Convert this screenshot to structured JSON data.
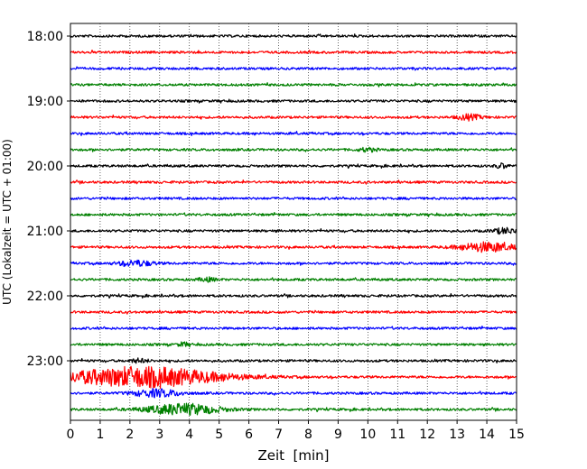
{
  "chart_data": {
    "type": "line",
    "subtype": "helicorder",
    "title": "",
    "xlabel": "Zeit  [min]",
    "ylabel": "UTC (Lokalzeit = UTC + 01:00)",
    "xlim": [
      0,
      15
    ],
    "x_ticks": [
      "0",
      "1",
      "2",
      "3",
      "4",
      "5",
      "6",
      "7",
      "8",
      "9",
      "10",
      "11",
      "12",
      "13",
      "14",
      "15"
    ],
    "y_ticks": [
      "18:00",
      "19:00",
      "20:00",
      "21:00",
      "22:00",
      "23:00"
    ],
    "grid": "vertical dotted lines at each minute",
    "trace_colors": [
      "#000000",
      "#ff0000",
      "#0000ff",
      "#008000"
    ],
    "traces": [
      {
        "start": "18:00",
        "color": "#000000",
        "events": []
      },
      {
        "start": "18:15",
        "color": "#ff0000",
        "events": []
      },
      {
        "start": "18:30",
        "color": "#0000ff",
        "events": []
      },
      {
        "start": "18:45",
        "color": "#008000",
        "events": []
      },
      {
        "start": "19:00",
        "color": "#000000",
        "events": []
      },
      {
        "start": "19:15",
        "color": "#ff0000",
        "events": [
          {
            "t": 13.4,
            "amp": 3,
            "width": 0.4
          }
        ]
      },
      {
        "start": "19:30",
        "color": "#0000ff",
        "events": []
      },
      {
        "start": "19:45",
        "color": "#008000",
        "events": [
          {
            "t": 10.0,
            "amp": 2,
            "width": 0.3
          }
        ]
      },
      {
        "start": "20:00",
        "color": "#000000",
        "events": [
          {
            "t": 14.5,
            "amp": 2.5,
            "width": 0.2
          }
        ]
      },
      {
        "start": "20:15",
        "color": "#ff0000",
        "events": []
      },
      {
        "start": "20:30",
        "color": "#0000ff",
        "events": []
      },
      {
        "start": "20:45",
        "color": "#008000",
        "events": []
      },
      {
        "start": "21:00",
        "color": "#000000",
        "events": [
          {
            "t": 14.6,
            "amp": 3,
            "width": 0.4
          }
        ]
      },
      {
        "start": "21:15",
        "color": "#ff0000",
        "events": [
          {
            "t": 14.0,
            "amp": 5,
            "width": 0.9
          }
        ]
      },
      {
        "start": "21:30",
        "color": "#0000ff",
        "events": [
          {
            "t": 2.2,
            "amp": 3,
            "width": 0.6
          }
        ]
      },
      {
        "start": "21:45",
        "color": "#008000",
        "events": [
          {
            "t": 4.6,
            "amp": 2,
            "width": 0.3
          }
        ]
      },
      {
        "start": "22:00",
        "color": "#000000",
        "events": []
      },
      {
        "start": "22:15",
        "color": "#ff0000",
        "events": []
      },
      {
        "start": "22:30",
        "color": "#0000ff",
        "events": []
      },
      {
        "start": "22:45",
        "color": "#008000",
        "events": [
          {
            "t": 3.8,
            "amp": 2,
            "width": 0.2
          }
        ]
      },
      {
        "start": "23:00",
        "color": "#000000",
        "events": [
          {
            "t": 2.3,
            "amp": 2,
            "width": 0.3
          }
        ]
      },
      {
        "start": "23:15",
        "color": "#ff0000",
        "events": [
          {
            "t": 2.4,
            "amp": 11,
            "width": 2.6
          }
        ]
      },
      {
        "start": "23:30",
        "color": "#0000ff",
        "events": [
          {
            "t": 2.9,
            "amp": 4,
            "width": 0.8
          }
        ]
      },
      {
        "start": "23:45",
        "color": "#008000",
        "events": [
          {
            "t": 3.8,
            "amp": 6,
            "width": 1.2
          }
        ]
      }
    ]
  }
}
